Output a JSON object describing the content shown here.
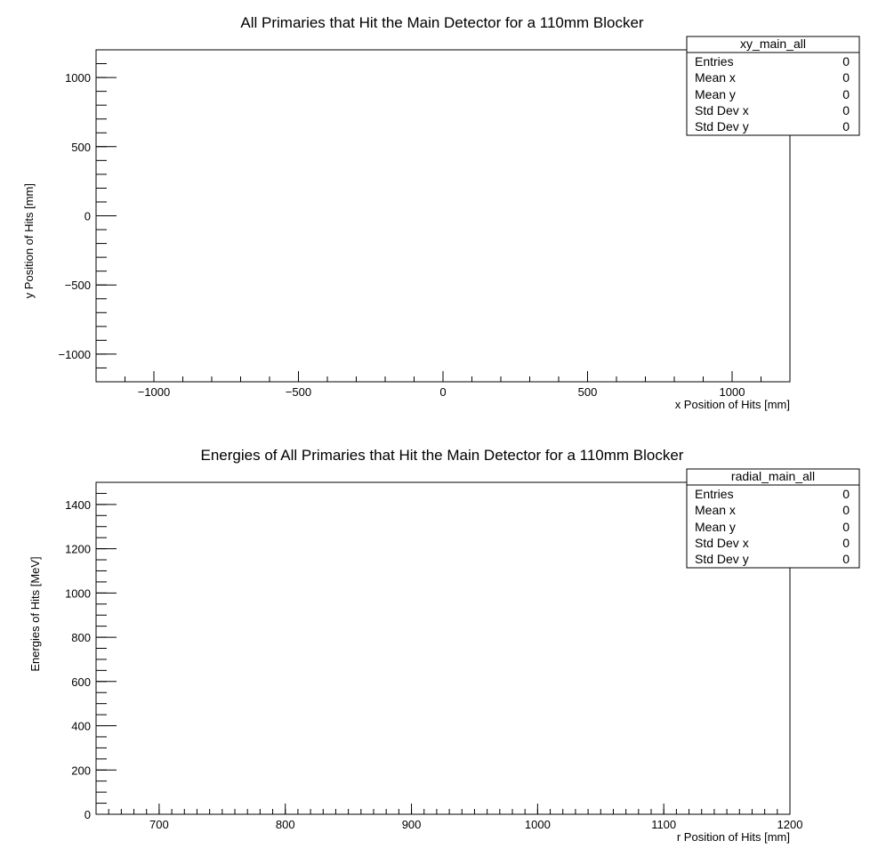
{
  "chart_data": [
    {
      "type": "scatter",
      "title": "All Primaries that Hit the Main Detector for a 110mm Blocker",
      "xlabel": "x Position of Hits [mm]",
      "ylabel": "y Position of Hits [mm]",
      "xlim": [
        -1200,
        1200
      ],
      "ylim": [
        -1200,
        1200
      ],
      "x_ticks": [
        -1000,
        -500,
        0,
        500,
        1000
      ],
      "x_tick_labels": [
        "−1000",
        "−500",
        "0",
        "500",
        "1000"
      ],
      "y_ticks": [
        -1000,
        -500,
        0,
        500,
        1000
      ],
      "y_tick_labels": [
        "−1000",
        "−500",
        "0",
        "500",
        "1000"
      ],
      "x_minor_step": 100,
      "y_minor_step": 100,
      "points": [],
      "grid": false,
      "legend_position": "top-right",
      "stats_box": {
        "name": "xy_main_all",
        "rows": [
          {
            "label": "Entries",
            "value": "0"
          },
          {
            "label": "Mean x",
            "value": "0"
          },
          {
            "label": "Mean y",
            "value": "0"
          },
          {
            "label": "Std Dev x",
            "value": "0"
          },
          {
            "label": "Std Dev y",
            "value": "0"
          }
        ]
      }
    },
    {
      "type": "scatter",
      "title": "Energies of All Primaries that Hit the Main Detector for a 110mm Blocker",
      "xlabel": "r Position of Hits [mm]",
      "ylabel": "Energies of Hits [MeV]",
      "xlim": [
        650,
        1200
      ],
      "ylim": [
        0,
        1500
      ],
      "x_ticks": [
        700,
        800,
        900,
        1000,
        1100,
        1200
      ],
      "x_tick_labels": [
        "700",
        "800",
        "900",
        "1000",
        "1100",
        "1200"
      ],
      "y_ticks": [
        0,
        200,
        400,
        600,
        800,
        1000,
        1200,
        1400
      ],
      "y_tick_labels": [
        "0",
        "200",
        "400",
        "600",
        "800",
        "1000",
        "1200",
        "1400"
      ],
      "x_minor_step": 10,
      "y_minor_step": 50,
      "points": [],
      "grid": false,
      "legend_position": "top-right",
      "stats_box": {
        "name": "radial_main_all",
        "rows": [
          {
            "label": "Entries",
            "value": "0"
          },
          {
            "label": "Mean x",
            "value": "0"
          },
          {
            "label": "Mean y",
            "value": "0"
          },
          {
            "label": "Std Dev x",
            "value": "0"
          },
          {
            "label": "Std Dev y",
            "value": "0"
          }
        ]
      }
    }
  ]
}
